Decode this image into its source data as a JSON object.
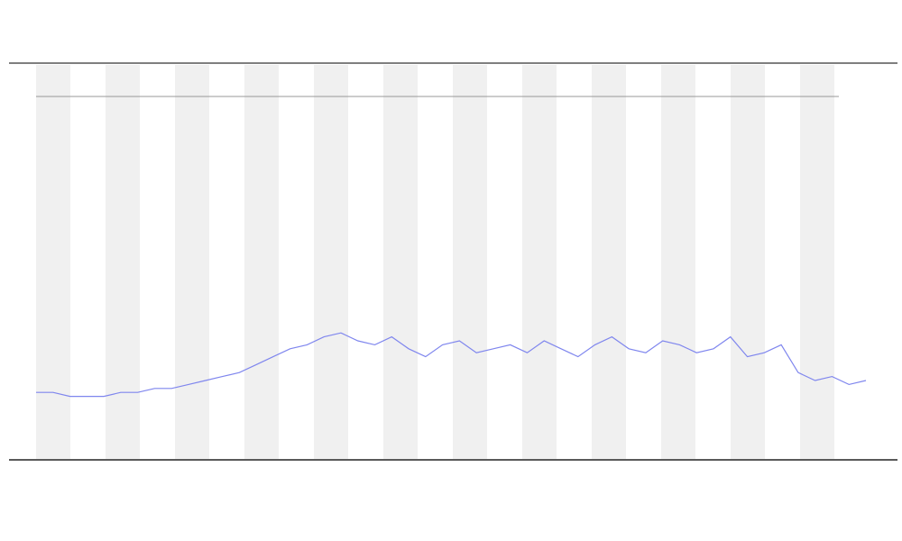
{
  "chart_data": {
    "type": "line",
    "x": [
      0,
      1,
      2,
      3,
      4,
      5,
      6,
      7,
      8,
      9,
      10,
      11,
      12,
      13,
      14,
      15,
      16,
      17,
      18,
      19,
      20,
      21,
      22,
      23,
      24,
      25,
      26,
      27,
      28,
      29,
      30,
      31,
      32,
      33,
      34,
      35,
      36,
      37,
      38,
      39,
      40,
      41,
      42,
      43,
      44,
      45,
      46,
      47,
      48,
      49
    ],
    "series": [
      {
        "color": "#7f86ee",
        "values": [
          17,
          17,
          16,
          16,
          16,
          17,
          17,
          18,
          18,
          19,
          20,
          21,
          22,
          24,
          26,
          28,
          29,
          31,
          32,
          30,
          29,
          31,
          28,
          26,
          29,
          30,
          27,
          28,
          29,
          27,
          30,
          28,
          26,
          29,
          31,
          28,
          27,
          30,
          29,
          27,
          28,
          31,
          26,
          27,
          29,
          22,
          20,
          21,
          19,
          20
        ]
      }
    ],
    "xlim": [
      0,
      49
    ],
    "ylim": [
      0,
      100
    ]
  }
}
